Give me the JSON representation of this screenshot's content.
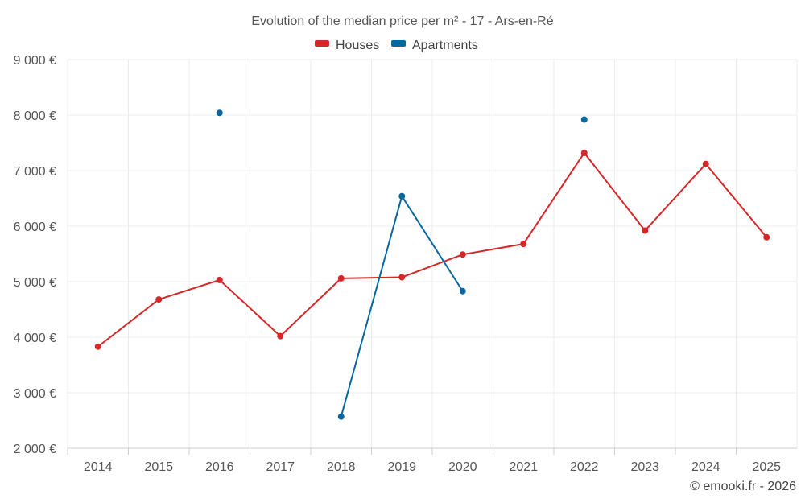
{
  "chart_data": {
    "type": "line",
    "title": "Evolution of the median price per m² - 17 - Ars-en-Ré",
    "categories": [
      "2014",
      "2015",
      "2016",
      "2017",
      "2018",
      "2019",
      "2020",
      "2021",
      "2022",
      "2023",
      "2024",
      "2025"
    ],
    "ylim": [
      2000,
      9000
    ],
    "yticks": [
      2000,
      3000,
      4000,
      5000,
      6000,
      7000,
      8000,
      9000
    ],
    "ytick_labels": [
      "2 000 €",
      "3 000 €",
      "4 000 €",
      "5 000 €",
      "6 000 €",
      "7 000 €",
      "8 000 €",
      "9 000 €"
    ],
    "grid": true,
    "legend_position": "top-center",
    "series": [
      {
        "name": "Houses",
        "color": "#d62728",
        "values": [
          3830,
          4680,
          5030,
          4020,
          5060,
          5080,
          5490,
          5680,
          7320,
          5920,
          7120,
          5800
        ]
      },
      {
        "name": "Apartments",
        "color": "#08679e",
        "values": [
          null,
          null,
          8040,
          null,
          2570,
          6540,
          4830,
          null,
          7920,
          null,
          null,
          null
        ]
      }
    ],
    "credit": "© emooki.fr - 2026"
  }
}
